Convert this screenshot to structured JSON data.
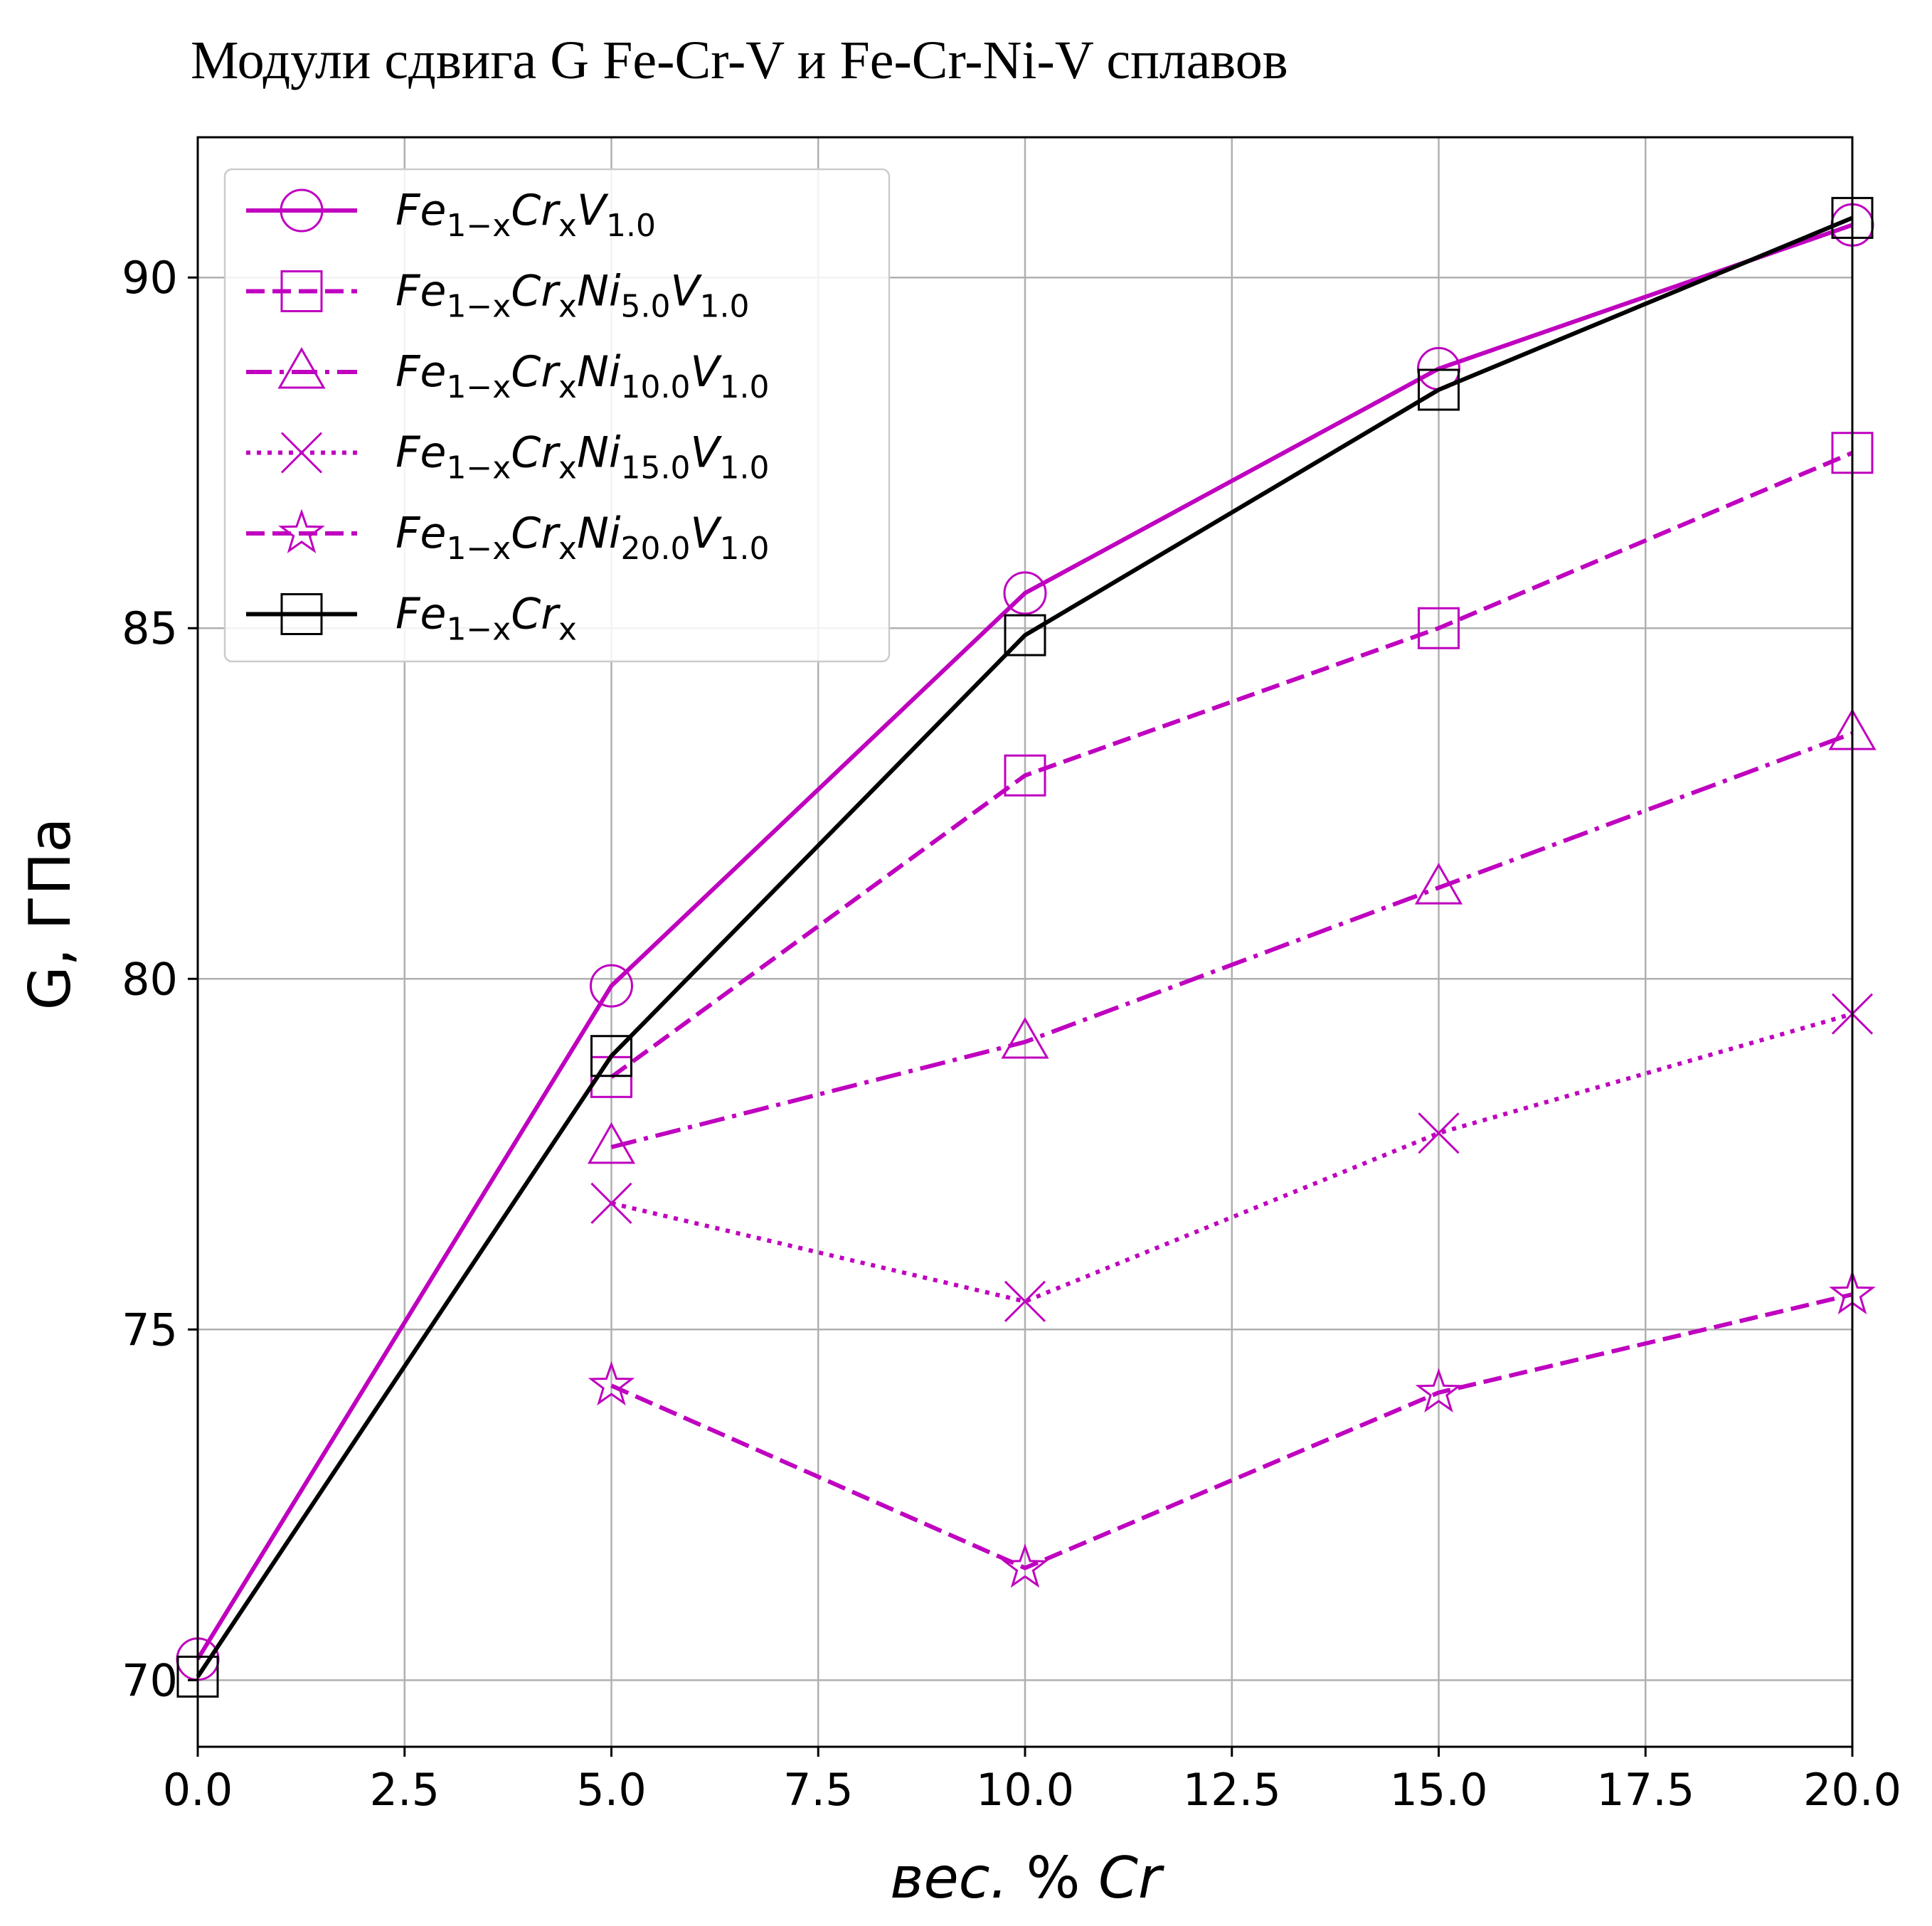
{
  "chart_data": {
    "type": "line",
    "title": "Модули сдвига G Fe-Cr-V и Fe-Cr-Ni-V сплавов",
    "xlabel_parts": [
      {
        "text": "вес.",
        "italic": true
      },
      {
        "text": " % ",
        "italic": false
      },
      {
        "text": "Cr",
        "italic": true
      }
    ],
    "ylabel": "G, ГПа",
    "xlim": [
      0,
      20
    ],
    "ylim": [
      69.05,
      92.0
    ],
    "xticks": [
      "0.0",
      "2.5",
      "5.0",
      "7.5",
      "10.0",
      "12.5",
      "15.0",
      "17.5",
      "20.0"
    ],
    "yticks": [
      "70",
      "75",
      "80",
      "85",
      "90"
    ],
    "grid": true,
    "legend_position": "upper-left",
    "series": [
      {
        "name": "Fe1−xCrxV1.0",
        "label_parts": [
          [
            "Fe",
            ""
          ],
          [
            "1−x",
            "sub"
          ],
          [
            "Cr",
            ""
          ],
          [
            "x",
            "sub"
          ],
          [
            "V",
            ""
          ],
          [
            "1.0",
            "sub"
          ]
        ],
        "color": "#bf00bf",
        "dash": "solid",
        "marker": "circle",
        "x": [
          0,
          5,
          10,
          15,
          20
        ],
        "y": [
          70.3,
          79.9,
          85.5,
          88.7,
          90.75
        ]
      },
      {
        "name": "Fe1−xCrxNi5.0V1.0",
        "label_parts": [
          [
            "Fe",
            ""
          ],
          [
            "1−x",
            "sub"
          ],
          [
            "Cr",
            ""
          ],
          [
            "x",
            "sub"
          ],
          [
            "Ni",
            ""
          ],
          [
            "5.0",
            "sub"
          ],
          [
            "V",
            ""
          ],
          [
            "1.0",
            "sub"
          ]
        ],
        "color": "#bf00bf",
        "dash": "dashed",
        "marker": "square",
        "x": [
          5,
          10,
          15,
          20
        ],
        "y": [
          78.6,
          82.9,
          85.0,
          87.5
        ]
      },
      {
        "name": "Fe1−xCrxNi10.0V1.0",
        "label_parts": [
          [
            "Fe",
            ""
          ],
          [
            "1−x",
            "sub"
          ],
          [
            "Cr",
            ""
          ],
          [
            "x",
            "sub"
          ],
          [
            "Ni",
            ""
          ],
          [
            "10.0",
            "sub"
          ],
          [
            "V",
            ""
          ],
          [
            "1.0",
            "sub"
          ]
        ],
        "color": "#bf00bf",
        "dash": "dashdot",
        "marker": "triangle",
        "x": [
          5,
          10,
          15,
          20
        ],
        "y": [
          77.6,
          79.1,
          81.3,
          83.5
        ]
      },
      {
        "name": "Fe1−xCrxNi15.0V1.0",
        "label_parts": [
          [
            "Fe",
            ""
          ],
          [
            "1−x",
            "sub"
          ],
          [
            "Cr",
            ""
          ],
          [
            "x",
            "sub"
          ],
          [
            "Ni",
            ""
          ],
          [
            "15.0",
            "sub"
          ],
          [
            "V",
            ""
          ],
          [
            "1.0",
            "sub"
          ]
        ],
        "color": "#bf00bf",
        "dash": "dotted",
        "marker": "x",
        "x": [
          5,
          10,
          15,
          20
        ],
        "y": [
          76.8,
          75.4,
          77.8,
          79.5
        ]
      },
      {
        "name": "Fe1−xCrxNi20.0V1.0",
        "label_parts": [
          [
            "Fe",
            ""
          ],
          [
            "1−x",
            "sub"
          ],
          [
            "Cr",
            ""
          ],
          [
            "x",
            "sub"
          ],
          [
            "Ni",
            ""
          ],
          [
            "20.0",
            "sub"
          ],
          [
            "V",
            ""
          ],
          [
            "1.0",
            "sub"
          ]
        ],
        "color": "#bf00bf",
        "dash": "dashed",
        "marker": "star",
        "x": [
          5,
          10,
          15,
          20
        ],
        "y": [
          74.2,
          71.6,
          74.1,
          75.5
        ]
      },
      {
        "name": "Fe1−xCrx",
        "label_parts": [
          [
            "Fe",
            ""
          ],
          [
            "1−x",
            "sub"
          ],
          [
            "Cr",
            ""
          ],
          [
            "x",
            "sub"
          ]
        ],
        "color": "#000000",
        "dash": "solid",
        "marker": "square",
        "x": [
          0,
          5,
          10,
          15,
          20
        ],
        "y": [
          70.05,
          78.9,
          84.9,
          88.4,
          90.85
        ]
      }
    ]
  }
}
